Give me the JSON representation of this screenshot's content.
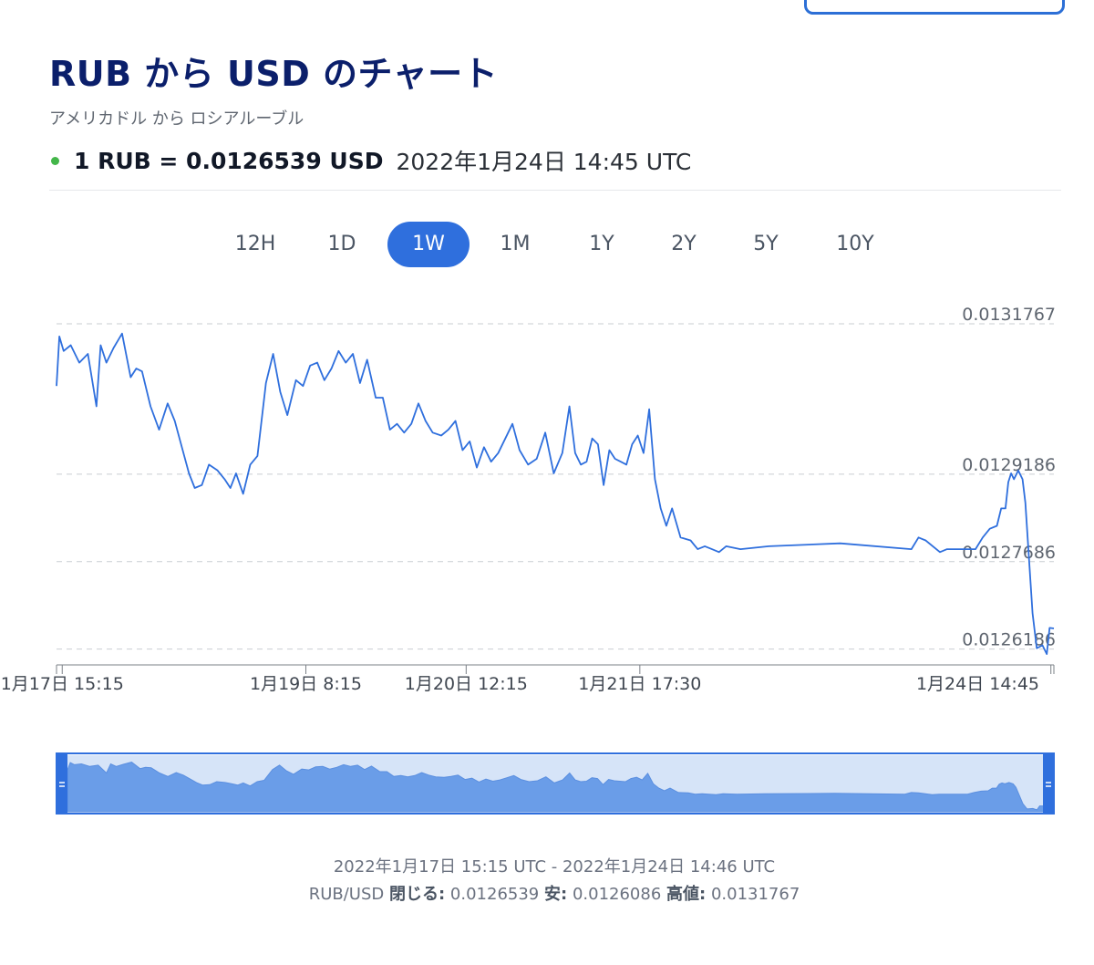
{
  "page": {
    "title": "RUB から USD のチャート",
    "subtitle": "アメリカドル から ロシアルーブル",
    "rate_text": "1 RUB = 0.0126539 USD",
    "rate_time": "2022年1月24日 14:45 UTC",
    "live_color": "#43b649"
  },
  "tabs": [
    {
      "label": "12H",
      "active": false
    },
    {
      "label": "1D",
      "active": false
    },
    {
      "label": "1W",
      "active": true
    },
    {
      "label": "1M",
      "active": false
    },
    {
      "label": "1Y",
      "active": false
    },
    {
      "label": "2Y",
      "active": false
    },
    {
      "label": "5Y",
      "active": false
    },
    {
      "label": "10Y",
      "active": false
    }
  ],
  "chart_data": {
    "type": "line",
    "title": "",
    "xlabel": "",
    "ylabel": "",
    "grid": true,
    "line_color": "#2f6fdd",
    "navigator_color": "#6a9de8",
    "ylim": [
      0.0126086,
      0.0131767
    ],
    "y_ticks": [
      "0.0131767",
      "0.0129186",
      "0.0127686",
      "0.0126186"
    ],
    "x_ticks": [
      {
        "x": 0.04,
        "label": "1月17日 15:15"
      },
      {
        "x": 1.75,
        "label": "1月19日 8:15"
      },
      {
        "x": 2.875,
        "label": "1月20日 12:15"
      },
      {
        "x": 4.094,
        "label": "1月21日 17:30"
      },
      {
        "x": 6.979,
        "label": "1月24日 14:45"
      }
    ],
    "x_unit": "days from 2022年1月17日 00:00 UTC",
    "series": [
      {
        "x": [
          0.0,
          0.02,
          0.05,
          0.1,
          0.16,
          0.22,
          0.28,
          0.31,
          0.35,
          0.4,
          0.46,
          0.52,
          0.56,
          0.6,
          0.66,
          0.72,
          0.78,
          0.83,
          0.88,
          0.93,
          0.97,
          1.02,
          1.07,
          1.13,
          1.18,
          1.22,
          1.26,
          1.31,
          1.36,
          1.41,
          1.47,
          1.52,
          1.57,
          1.62,
          1.68,
          1.73,
          1.78,
          1.83,
          1.88,
          1.93,
          1.98,
          2.03,
          2.08,
          2.13,
          2.18,
          2.24,
          2.29,
          2.34,
          2.39,
          2.44,
          2.49,
          2.54,
          2.59,
          2.64,
          2.7,
          2.75,
          2.8,
          2.85,
          2.9,
          2.95,
          3.0,
          3.05,
          3.1,
          3.15,
          3.2,
          3.25,
          3.31,
          3.37,
          3.43,
          3.49,
          3.55,
          3.6,
          3.64,
          3.68,
          3.72,
          3.76,
          3.8,
          3.84,
          3.88,
          3.92,
          3.96,
          4.0,
          4.04,
          4.08,
          4.12,
          4.16,
          4.2,
          4.24,
          4.28,
          4.32,
          4.38,
          4.45,
          4.5,
          4.55,
          4.6,
          4.65,
          4.7,
          4.8,
          5.0,
          5.5,
          6.0,
          6.05,
          6.1,
          6.2,
          6.25,
          6.3,
          6.35,
          6.4,
          6.45,
          6.5,
          6.55,
          6.6,
          6.63,
          6.66,
          6.68,
          6.7,
          6.72,
          6.75,
          6.78,
          6.8,
          6.85,
          6.88,
          6.92,
          6.95,
          6.97,
          7.0
        ],
        "y": [
          0.01307,
          0.013155,
          0.01313,
          0.01314,
          0.01311,
          0.013125,
          0.013035,
          0.01314,
          0.01311,
          0.013135,
          0.01316,
          0.013085,
          0.0131,
          0.013095,
          0.013035,
          0.012995,
          0.01304,
          0.01301,
          0.012965,
          0.01292,
          0.012895,
          0.0129,
          0.012935,
          0.012925,
          0.01291,
          0.012895,
          0.01292,
          0.012885,
          0.012935,
          0.01295,
          0.013075,
          0.013125,
          0.01306,
          0.01302,
          0.01308,
          0.01307,
          0.013105,
          0.01311,
          0.01308,
          0.0131,
          0.01313,
          0.01311,
          0.013125,
          0.013075,
          0.013115,
          0.01305,
          0.01305,
          0.012995,
          0.013005,
          0.01299,
          0.013005,
          0.01304,
          0.01301,
          0.01299,
          0.012985,
          0.012995,
          0.01301,
          0.01296,
          0.012975,
          0.01293,
          0.012965,
          0.01294,
          0.012955,
          0.01298,
          0.013005,
          0.01296,
          0.012935,
          0.012945,
          0.01299,
          0.01292,
          0.012955,
          0.013035,
          0.012955,
          0.012935,
          0.01294,
          0.01298,
          0.01297,
          0.0129,
          0.01296,
          0.012945,
          0.01294,
          0.012935,
          0.01297,
          0.012985,
          0.012955,
          0.01303,
          0.01291,
          0.01286,
          0.01283,
          0.01286,
          0.01281,
          0.012805,
          0.01279,
          0.012795,
          0.01279,
          0.012785,
          0.012795,
          0.01279,
          0.012795,
          0.0128,
          0.01279,
          0.01281,
          0.012805,
          0.012785,
          0.01279,
          0.01279,
          0.01279,
          0.01279,
          0.01279,
          0.01281,
          0.012825,
          0.01283,
          0.01286,
          0.01286,
          0.012905,
          0.01292,
          0.01291,
          0.012925,
          0.01291,
          0.01287,
          0.01268,
          0.01262,
          0.012625,
          0.01261,
          0.012655,
          0.012654
        ]
      }
    ],
    "range": {
      "text": "2022年1月17日 15:15 UTC - 2022年1月24日 14:46 UTC"
    },
    "summary": {
      "pair": "RUB/USD",
      "close_label": "閉じる:",
      "close_value": "0.0126539",
      "low_label": "安:",
      "low_value": "0.0126086",
      "high_label": "高値:",
      "high_value": "0.0131767"
    }
  }
}
